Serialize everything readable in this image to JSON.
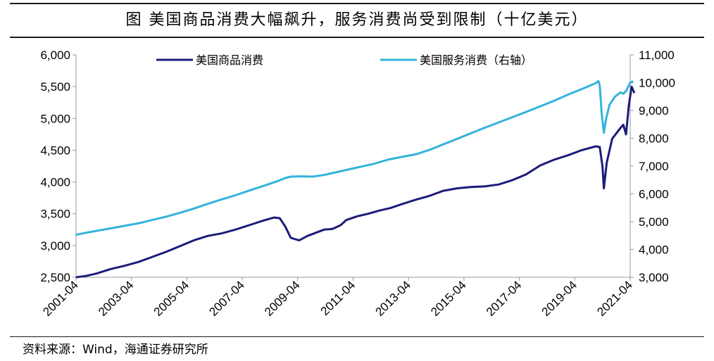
{
  "header": {
    "title": "图  美国商品消费大幅飙升，服务消费尚受到限制（十亿美元）"
  },
  "footer": {
    "source": "资料来源：Wind，海通证券研究所"
  },
  "chart_data": {
    "type": "line",
    "title": "图  美国商品消费大幅飙升，服务消费尚受到限制（十亿美元）",
    "grid": false,
    "legend_position": "top",
    "x_ticks": [
      "2001-04",
      "2003-04",
      "2005-04",
      "2007-04",
      "2009-04",
      "2011-04",
      "2013-04",
      "2015-04",
      "2017-04",
      "2019-04",
      "2021-04"
    ],
    "x_range": [
      2001.25,
      2021.25
    ],
    "y_left": {
      "ticks": [
        "2,500",
        "3,000",
        "3,500",
        "4,000",
        "4,500",
        "5,000",
        "5,500",
        "6,000"
      ],
      "range": [
        2500,
        6000
      ]
    },
    "y_right": {
      "ticks": [
        "3,000",
        "4,000",
        "5,000",
        "6,000",
        "7,000",
        "8,000",
        "9,000",
        "10,000",
        "11,000"
      ],
      "range": [
        3000,
        11000
      ]
    },
    "series": [
      {
        "name": "美国商品消费",
        "axis": "left",
        "color": "#1c1c7a",
        "points": [
          [
            2001.25,
            2500
          ],
          [
            2001.6,
            2520
          ],
          [
            2002.0,
            2560
          ],
          [
            2002.5,
            2630
          ],
          [
            2003.0,
            2680
          ],
          [
            2003.5,
            2740
          ],
          [
            2004.0,
            2820
          ],
          [
            2004.5,
            2900
          ],
          [
            2005.0,
            2990
          ],
          [
            2005.5,
            3080
          ],
          [
            2006.0,
            3150
          ],
          [
            2006.5,
            3190
          ],
          [
            2007.0,
            3250
          ],
          [
            2007.5,
            3320
          ],
          [
            2008.0,
            3390
          ],
          [
            2008.4,
            3440
          ],
          [
            2008.6,
            3430
          ],
          [
            2008.8,
            3300
          ],
          [
            2009.0,
            3120
          ],
          [
            2009.3,
            3080
          ],
          [
            2009.6,
            3150
          ],
          [
            2009.9,
            3200
          ],
          [
            2010.2,
            3250
          ],
          [
            2010.5,
            3260
          ],
          [
            2010.8,
            3320
          ],
          [
            2011.0,
            3400
          ],
          [
            2011.4,
            3460
          ],
          [
            2011.8,
            3500
          ],
          [
            2012.2,
            3550
          ],
          [
            2012.6,
            3590
          ],
          [
            2013.0,
            3650
          ],
          [
            2013.5,
            3720
          ],
          [
            2014.0,
            3780
          ],
          [
            2014.5,
            3860
          ],
          [
            2015.0,
            3900
          ],
          [
            2015.5,
            3920
          ],
          [
            2016.0,
            3930
          ],
          [
            2016.5,
            3960
          ],
          [
            2017.0,
            4030
          ],
          [
            2017.5,
            4120
          ],
          [
            2018.0,
            4260
          ],
          [
            2018.5,
            4350
          ],
          [
            2019.0,
            4420
          ],
          [
            2019.5,
            4500
          ],
          [
            2020.0,
            4560
          ],
          [
            2020.15,
            4550
          ],
          [
            2020.25,
            4250
          ],
          [
            2020.3,
            3900
          ],
          [
            2020.4,
            4300
          ],
          [
            2020.6,
            4680
          ],
          [
            2020.9,
            4850
          ],
          [
            2021.0,
            4900
          ],
          [
            2021.1,
            4750
          ],
          [
            2021.2,
            5200
          ],
          [
            2021.3,
            5500
          ],
          [
            2021.4,
            5400
          ]
        ]
      },
      {
        "name": "美国服务消费（右轴）",
        "axis": "right",
        "color": "#33b3dc",
        "points": [
          [
            2001.25,
            4530
          ],
          [
            2001.6,
            4600
          ],
          [
            2002.0,
            4670
          ],
          [
            2002.5,
            4760
          ],
          [
            2003.0,
            4850
          ],
          [
            2003.5,
            4940
          ],
          [
            2004.0,
            5060
          ],
          [
            2004.5,
            5180
          ],
          [
            2005.0,
            5320
          ],
          [
            2005.5,
            5470
          ],
          [
            2006.0,
            5640
          ],
          [
            2006.5,
            5800
          ],
          [
            2007.0,
            5950
          ],
          [
            2007.5,
            6120
          ],
          [
            2008.0,
            6280
          ],
          [
            2008.5,
            6450
          ],
          [
            2008.8,
            6570
          ],
          [
            2009.0,
            6620
          ],
          [
            2009.4,
            6630
          ],
          [
            2009.8,
            6620
          ],
          [
            2010.2,
            6680
          ],
          [
            2010.6,
            6770
          ],
          [
            2011.0,
            6860
          ],
          [
            2011.5,
            6970
          ],
          [
            2012.0,
            7080
          ],
          [
            2012.5,
            7230
          ],
          [
            2013.0,
            7330
          ],
          [
            2013.5,
            7420
          ],
          [
            2014.0,
            7580
          ],
          [
            2014.5,
            7780
          ],
          [
            2015.0,
            7980
          ],
          [
            2015.5,
            8180
          ],
          [
            2016.0,
            8380
          ],
          [
            2016.5,
            8570
          ],
          [
            2017.0,
            8760
          ],
          [
            2017.5,
            8950
          ],
          [
            2018.0,
            9150
          ],
          [
            2018.5,
            9350
          ],
          [
            2019.0,
            9570
          ],
          [
            2019.5,
            9770
          ],
          [
            2020.0,
            9980
          ],
          [
            2020.1,
            10060
          ],
          [
            2020.15,
            9900
          ],
          [
            2020.22,
            8900
          ],
          [
            2020.3,
            8200
          ],
          [
            2020.38,
            8700
          ],
          [
            2020.5,
            9200
          ],
          [
            2020.7,
            9500
          ],
          [
            2020.9,
            9650
          ],
          [
            2021.0,
            9600
          ],
          [
            2021.1,
            9700
          ],
          [
            2021.25,
            10000
          ],
          [
            2021.35,
            10050
          ]
        ]
      }
    ]
  }
}
